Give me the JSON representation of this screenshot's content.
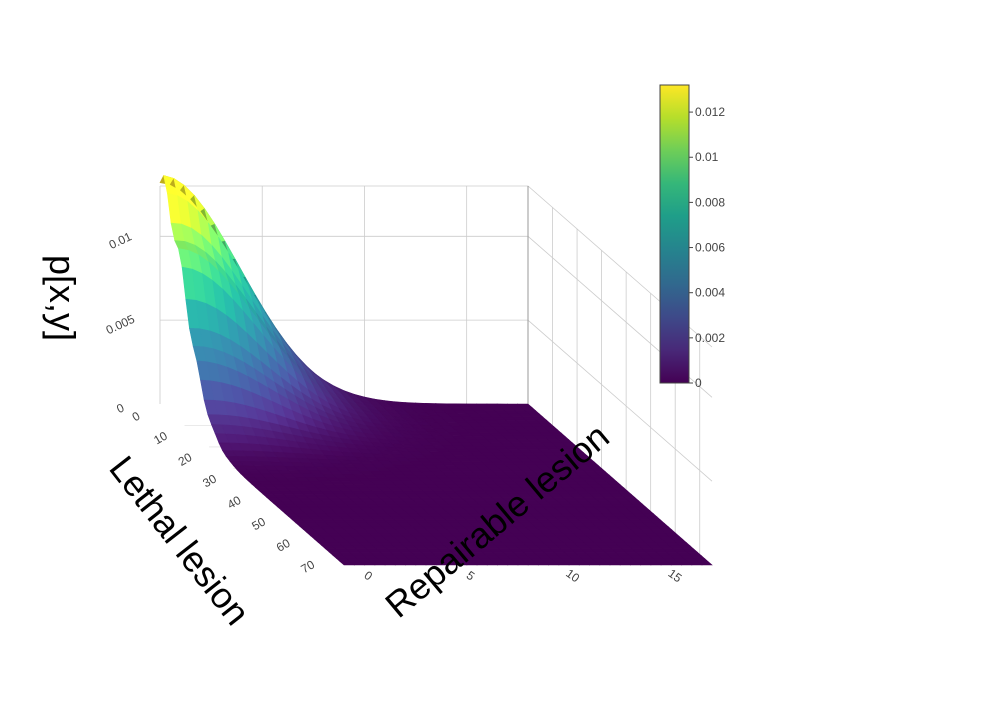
{
  "chart_data": {
    "type": "surface",
    "title": "",
    "colorscale": "Viridis",
    "colorscale_stops": [
      "#440154",
      "#482878",
      "#3e4989",
      "#31688e",
      "#26828e",
      "#1f9e89",
      "#35b779",
      "#6ece58",
      "#b5de2b",
      "#fde725"
    ],
    "axes": {
      "x": {
        "title": "Lethal lesion",
        "range": [
          0,
          75
        ],
        "ticks": [
          "0",
          "10",
          "20",
          "30",
          "40",
          "50",
          "60",
          "70"
        ]
      },
      "y": {
        "title": "Repairable lesion",
        "range": [
          0,
          18
        ],
        "ticks": [
          "0",
          "5",
          "10",
          "15"
        ]
      },
      "z": {
        "title": "p[x,y]",
        "range": [
          0,
          0.013
        ],
        "ticks": [
          "0",
          "0.005",
          "0.01"
        ]
      }
    },
    "peak": {
      "x": 0,
      "y": 0,
      "z": 0.0132
    },
    "surface_description_values": {
      "x_spread": 10,
      "y_spread": 3.8
    },
    "colorbar": {
      "range": [
        0,
        0.0132
      ],
      "ticks": [
        "0",
        "0.002",
        "0.004",
        "0.006",
        "0.008",
        "0.01",
        "0.012"
      ],
      "tick_values": [
        0,
        0.002,
        0.004,
        0.006,
        0.008,
        0.01,
        0.012
      ]
    }
  }
}
